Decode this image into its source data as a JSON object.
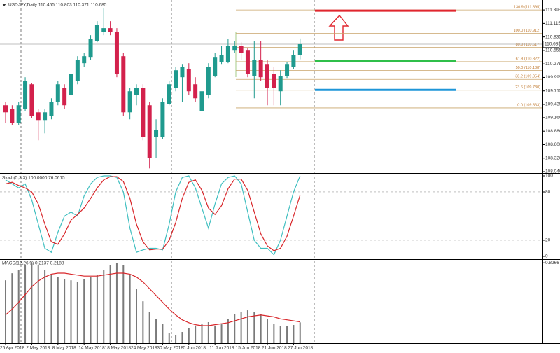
{
  "chart_data": [
    {
      "type": "candlestick",
      "title": "USDJPY,Daily  110.465 110.803 110.371 110.685",
      "categories": [
        "26 Apr 2018",
        null,
        null,
        null,
        "2 May 2018",
        null,
        null,
        null,
        "8 May 2018",
        null,
        null,
        null,
        "14 May 2018",
        null,
        null,
        null,
        "18 May 2018",
        null,
        null,
        null,
        "24 May 2018",
        null,
        null,
        null,
        "30 May 2018",
        null,
        null,
        null,
        "5 Jun 2018",
        null,
        null,
        null,
        "11 Jun 2018",
        null,
        null,
        null,
        "15 Jun 2018",
        null,
        null,
        null,
        "21 Jun 2018",
        null,
        null,
        null,
        "27 Jun 2018",
        null
      ],
      "open": [
        109.417,
        109.344,
        109.053,
        109.344,
        109.853,
        109.271,
        109.097,
        109.199,
        109.49,
        109.781,
        109.635,
        109.926,
        110.29,
        110.406,
        110.755,
        110.944,
        111.017,
        110.944,
        110.435,
        109.271,
        109.635,
        109.781,
        109.417,
        108.762,
        108.762,
        109.446,
        109.781,
        109.999,
        110.173,
        109.853,
        109.3,
        109.635,
        110.028,
        110.319,
        110.319,
        110.551,
        110.653,
        110.551,
        110.028,
        110.362,
        110.26,
        110.071,
        109.708,
        110.028,
        110.217,
        110.465
      ],
      "high": [
        109.49,
        109.417,
        109.49,
        109.999,
        109.882,
        109.344,
        109.344,
        109.562,
        109.926,
        109.853,
        110.144,
        110.435,
        110.508,
        110.871,
        111.162,
        111.424,
        111.162,
        111.017,
        110.508,
        109.781,
        109.853,
        109.853,
        109.49,
        109.126,
        109.562,
        109.926,
        110.217,
        110.26,
        110.29,
        109.999,
        109.781,
        110.29,
        110.508,
        110.653,
        110.799,
        110.755,
        110.726,
        110.61,
        110.755,
        110.755,
        110.362,
        110.217,
        110.144,
        110.319,
        110.551,
        110.803
      ],
      "low": [
        109.053,
        109.01,
        109.01,
        109.3,
        109.155,
        108.69,
        108.835,
        109.126,
        109.417,
        109.344,
        109.562,
        109.853,
        110.217,
        110.362,
        110.726,
        110.871,
        110.871,
        109.999,
        109.199,
        109.126,
        109.417,
        108.69,
        108.108,
        108.326,
        108.719,
        109.417,
        109.708,
        109.49,
        109.635,
        109.49,
        109.199,
        109.562,
        109.999,
        110.26,
        110.29,
        110.508,
        110.362,
        109.999,
        109.562,
        109.926,
        109.417,
        109.417,
        109.417,
        109.97,
        110.173,
        110.371
      ],
      "close": [
        109.271,
        109.053,
        109.417,
        109.926,
        109.199,
        109.097,
        109.271,
        109.49,
        109.853,
        109.417,
        110.071,
        110.362,
        110.435,
        110.799,
        111.09,
        111.017,
        110.944,
        110.071,
        109.271,
        109.708,
        109.781,
        108.762,
        108.326,
        108.908,
        109.49,
        109.853,
        110.144,
        110.217,
        109.708,
        109.562,
        109.708,
        110.217,
        110.406,
        110.464,
        110.653,
        110.653,
        110.508,
        110.071,
        110.362,
        109.999,
        109.781,
        109.781,
        110.028,
        110.26,
        110.464,
        110.685
      ],
      "up_color": "#1f9a8e",
      "down_color": "#d3214c",
      "ylim": [
        108.011,
        111.6
      ],
      "yticks": [
        111.395,
        111.115,
        110.835,
        110.555,
        110.275,
        109.995,
        109.715,
        109.435,
        {
          "value": 109.16,
          "label": "109.160"
        },
        {
          "value": 108.88,
          "label": "108.880"
        },
        {
          "value": 108.6,
          "label": "108.600"
        },
        {
          "value": 108.32,
          "label": "108.320"
        },
        {
          "value": 108.04,
          "label": "108.040"
        }
      ],
      "last_price": 110.685,
      "fib_levels": [
        {
          "value": 111.395,
          "label": "130.9 (111.395)"
        },
        {
          "value": 110.912,
          "label": "100.0 (110.912)"
        },
        {
          "value": 110.617,
          "label": "80.9 (110.617)"
        },
        {
          "value": 110.322,
          "label": "61.8 (110.322)"
        },
        {
          "value": 110.138,
          "label": "50.0 (110.138)"
        },
        {
          "value": 109.954,
          "label": "38.2 (109.954)"
        },
        {
          "value": 109.73,
          "label": "23.6 (109.730)"
        },
        {
          "value": 109.363,
          "label": "0.0 (109.363)"
        }
      ],
      "levels": [
        {
          "value": 111.38,
          "color": "#e0262e"
        },
        {
          "value": 110.333,
          "color": "#2fbf4a"
        },
        {
          "value": 109.737,
          "color": "#1e96d8"
        }
      ]
    },
    {
      "type": "line",
      "title": "Stoch(5,3,3) 100.0000 76.0615",
      "ylim": [
        -3.5,
        102.6
      ],
      "yticks": [
        100,
        80,
        20,
        0
      ],
      "grid_lines": [
        80,
        20
      ],
      "series": [
        {
          "color": "#3fbfc0",
          "values": [
            95,
            90,
            85,
            90,
            70,
            40,
            10,
            5,
            30,
            50,
            55,
            50,
            75,
            90,
            98,
            100,
            100,
            98,
            80,
            35,
            5,
            8,
            10,
            10,
            8,
            40,
            80,
            98,
            100,
            85,
            60,
            35,
            65,
            90,
            98,
            100,
            90,
            55,
            20,
            10,
            10,
            2,
            20,
            50,
            80,
            100
          ]
        },
        {
          "color": "#d8262a",
          "values": [
            90,
            92,
            88,
            85,
            80,
            65,
            40,
            18,
            15,
            28,
            45,
            52,
            60,
            72,
            85,
            95,
            99,
            99,
            93,
            72,
            40,
            18,
            8,
            9,
            9,
            20,
            42,
            72,
            92,
            95,
            82,
            60,
            52,
            63,
            84,
            96,
            96,
            82,
            55,
            28,
            13,
            7,
            10,
            25,
            50,
            76.0615
          ]
        }
      ]
    },
    {
      "type": "bar",
      "title": "MACD(12,26,9) 0.2137 0.2188",
      "ylim": [
        0,
        0.857
      ],
      "yticks": [
        0.8266
      ],
      "series": [
        {
          "type": "bar",
          "color": "#7a7a7a",
          "values": [
            0.647,
            0.719,
            0.755,
            0.805,
            0.8266,
            0.805,
            0.755,
            0.704,
            0.683,
            0.661,
            0.647,
            0.633,
            0.661,
            0.683,
            0.704,
            0.755,
            0.805,
            0.826,
            0.805,
            0.704,
            0.561,
            0.431,
            0.323,
            0.252,
            0.201,
            0.108,
            0.086,
            0.115,
            0.158,
            0.18,
            0.201,
            0.216,
            0.18,
            0.194,
            0.252,
            0.302,
            0.323,
            0.338,
            0.323,
            0.302,
            0.252,
            0.201,
            0.18,
            0.18,
            0.187,
            0.2137
          ]
        },
        {
          "type": "line",
          "color": "#d8262a",
          "values": [
            0.29,
            0.35,
            0.42,
            0.5,
            0.58,
            0.64,
            0.68,
            0.71,
            0.72,
            0.72,
            0.71,
            0.7,
            0.69,
            0.69,
            0.69,
            0.7,
            0.71,
            0.72,
            0.72,
            0.71,
            0.68,
            0.63,
            0.56,
            0.49,
            0.42,
            0.35,
            0.29,
            0.24,
            0.21,
            0.19,
            0.18,
            0.18,
            0.19,
            0.2,
            0.21,
            0.23,
            0.25,
            0.27,
            0.28,
            0.29,
            0.28,
            0.27,
            0.25,
            0.24,
            0.23,
            0.2188
          ]
        }
      ]
    }
  ]
}
